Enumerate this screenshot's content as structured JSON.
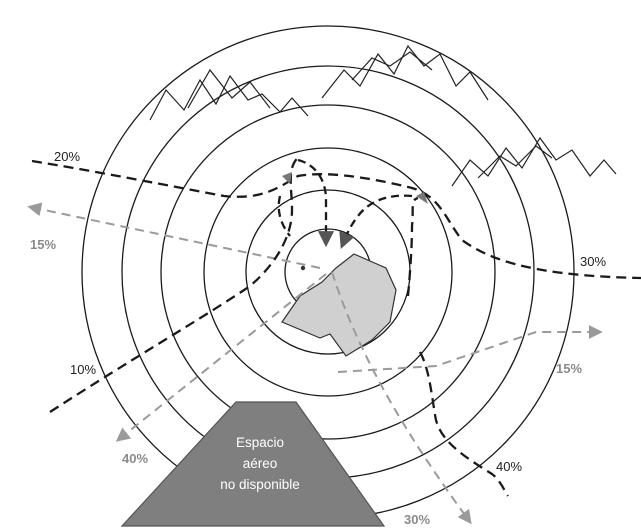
{
  "colors": {
    "ring_stroke": "#1a1a1a",
    "mountain_stroke": "#222222",
    "heavy_dash": "#1a1a1a",
    "light_dash": "#9a9a9a",
    "light_label": "#8a8a8a",
    "airport_fill": "#d0d0d0",
    "airport_stroke": "#333333",
    "restricted_fill": "#7f7f7f",
    "restricted_stroke": "#555555",
    "restricted_text": "#ffffff",
    "label_text": "#222222"
  },
  "dark_routes": [
    {
      "id": "route-20",
      "label": "20%"
    },
    {
      "id": "route-10",
      "label": "10%"
    },
    {
      "id": "route-30",
      "label": "30%"
    },
    {
      "id": "route-40",
      "label": "40%"
    }
  ],
  "light_routes": [
    {
      "id": "route-west",
      "label": "15%"
    },
    {
      "id": "route-southwest",
      "label": "40%"
    },
    {
      "id": "route-east",
      "label": "15%"
    },
    {
      "id": "route-south",
      "label": "30%"
    }
  ],
  "restricted_area": {
    "lines": [
      "Espacio",
      "aéreo",
      "no disponible"
    ]
  }
}
